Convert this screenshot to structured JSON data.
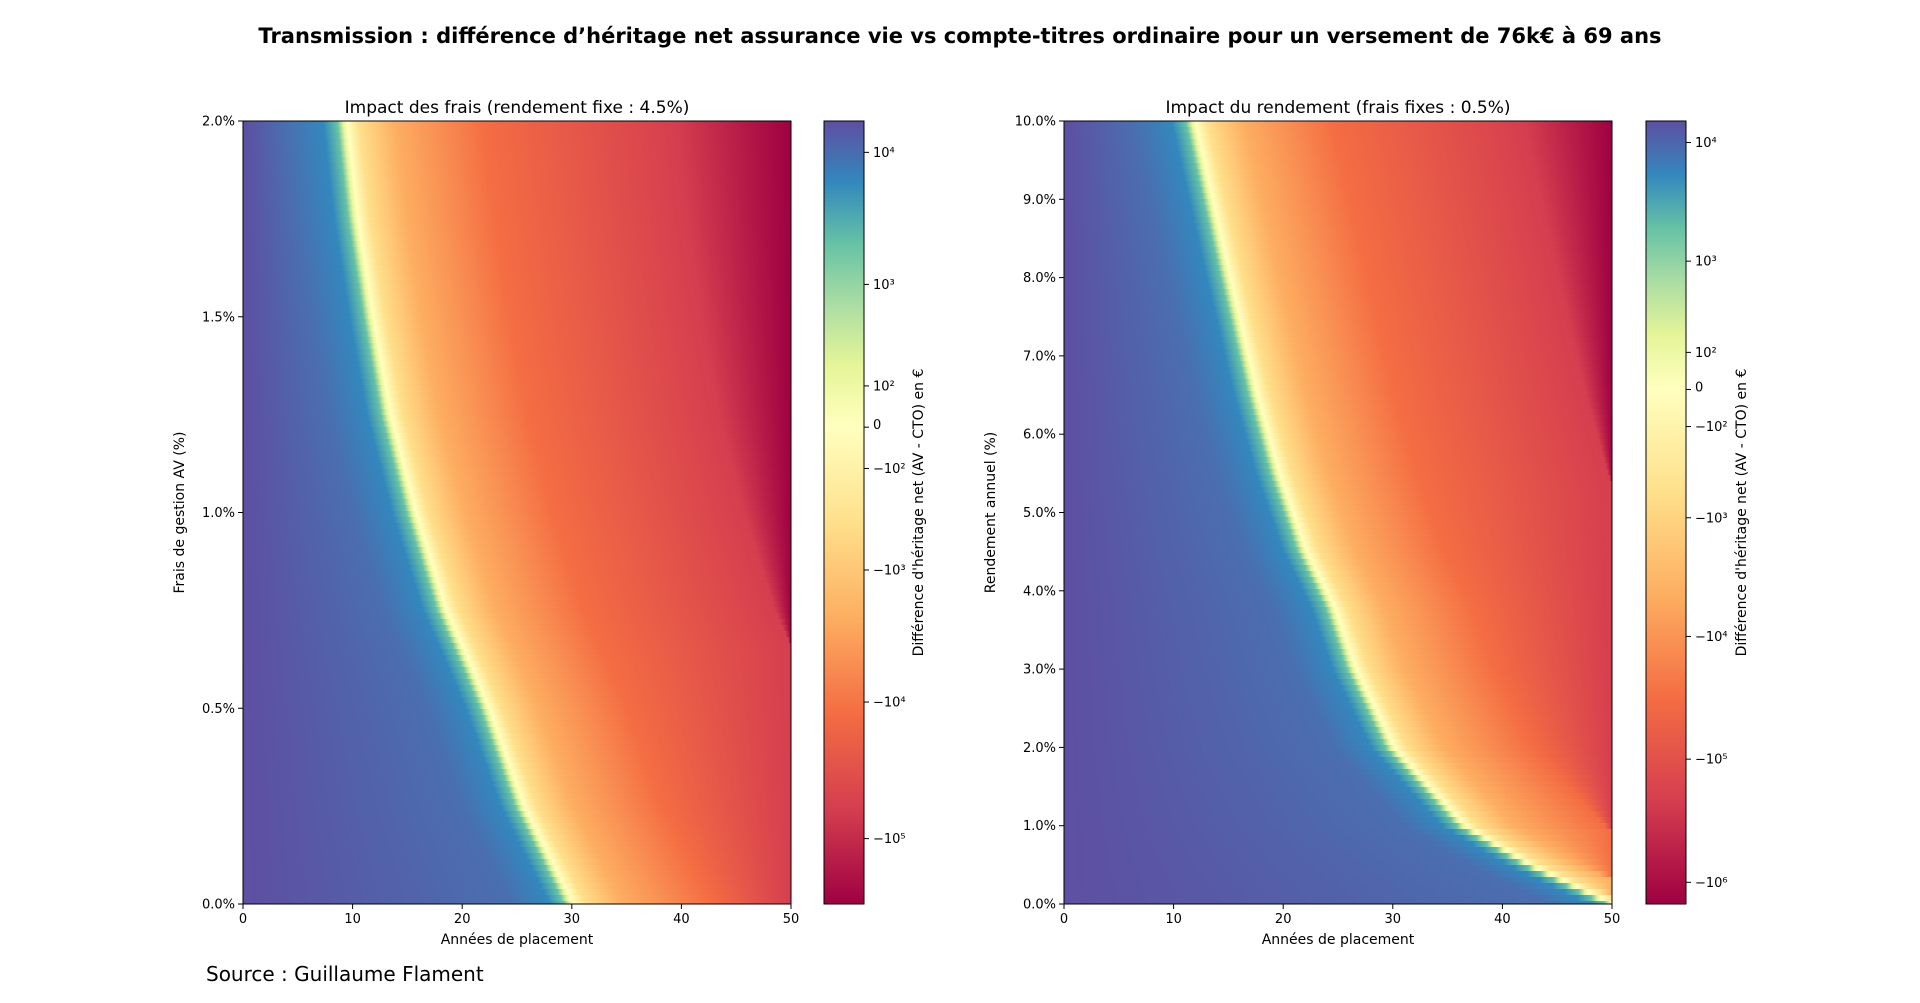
{
  "title": "Transmission : différence d’héritage net assurance vie vs compte-titres ordinaire pour un versement de 76k€ à 69 ans",
  "source": "Source : Guillaume Flament",
  "chart_data": [
    {
      "type": "heatmap",
      "title": "Impact des frais (rendement fixe : 4.5%)",
      "xlabel": "Années de placement",
      "ylabel": "Frais de gestion AV (%)",
      "xlim": [
        0,
        50
      ],
      "ylim": [
        0.0,
        2.0
      ],
      "xticks": [
        0,
        10,
        20,
        30,
        40,
        50
      ],
      "xtick_labels": [
        "0",
        "10",
        "20",
        "30",
        "40",
        "50"
      ],
      "yticks": [
        0.0,
        0.5,
        1.0,
        1.5,
        2.0
      ],
      "ytick_labels": [
        "0.0%",
        "0.5%",
        "1.0%",
        "1.5%",
        "2.0%"
      ],
      "zero_boundary": {
        "y": [
          0.0,
          0.25,
          0.5,
          0.6,
          0.75,
          1.0,
          1.25,
          1.5,
          1.75,
          2.0
        ],
        "x": [
          30.0,
          25.5,
          22.3,
          20.8,
          18.4,
          15.6,
          13.3,
          11.7,
          10.3,
          9.3
        ]
      },
      "colorbar": {
        "label": "Différence d'héritage net (AV - CTO) en €",
        "scale": "symlog",
        "range": [
          -300000,
          17000
        ],
        "tick_values": [
          10000,
          1000,
          100,
          0,
          -100,
          -1000,
          -10000,
          -100000
        ],
        "tick_labels": [
          "10⁴",
          "10³",
          "10²",
          "0",
          "−10²",
          "−10³",
          "−10⁴",
          "−10⁵"
        ]
      },
      "colormap": "Spectral"
    },
    {
      "type": "heatmap",
      "title": "Impact du rendement (frais fixes : 0.5%)",
      "xlabel": "Années de placement",
      "ylabel": "Rendement annuel (%)",
      "xlim": [
        0,
        50
      ],
      "ylim": [
        0.0,
        10.0
      ],
      "xticks": [
        0,
        10,
        20,
        30,
        40,
        50
      ],
      "xtick_labels": [
        "0",
        "10",
        "20",
        "30",
        "40",
        "50"
      ],
      "yticks": [
        0,
        1,
        2,
        3,
        4,
        5,
        6,
        7,
        8,
        9,
        10
      ],
      "ytick_labels": [
        "0.0%",
        "1.0%",
        "2.0%",
        "3.0%",
        "4.0%",
        "5.0%",
        "6.0%",
        "7.0%",
        "8.0%",
        "9.0%",
        "10.0%"
      ],
      "zero_boundary": {
        "y": [
          0.0,
          0.5,
          1.0,
          2.0,
          3.0,
          3.8,
          4.5,
          5.5,
          6.5,
          8.0,
          10.0
        ],
        "x": [
          50.0,
          42.5,
          36.5,
          30.0,
          26.5,
          24.5,
          22.0,
          19.5,
          17.5,
          15.0,
          11.8
        ]
      },
      "colorbar": {
        "label": "Différence d'héritage net (AV - CTO) en €",
        "scale": "symlog",
        "range": [
          -1500000,
          15000
        ],
        "tick_values": [
          10000,
          1000,
          100,
          0,
          -100,
          -1000,
          -10000,
          -100000,
          -1000000
        ],
        "tick_labels": [
          "10⁴",
          "10³",
          "10²",
          "0",
          "−10²",
          "−10³",
          "−10⁴",
          "−10⁵",
          "−10⁶"
        ]
      },
      "colormap": "Spectral"
    }
  ]
}
